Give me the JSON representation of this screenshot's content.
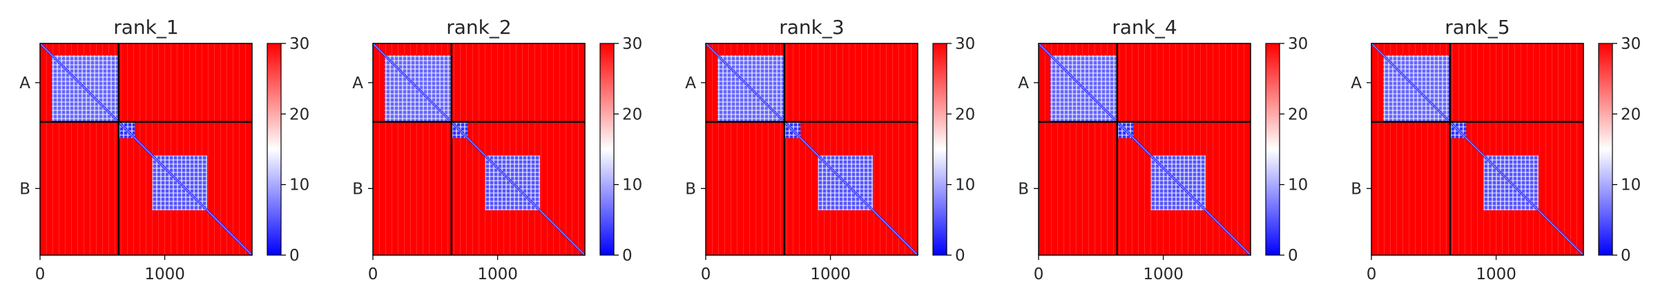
{
  "chart_data": {
    "type": "heatmap",
    "colormap": {
      "name": "bwr",
      "colors": [
        "#0000ff",
        "#ffffff",
        "#ff0000"
      ],
      "vmin": 0,
      "vmax": 30
    },
    "colorbar_ticks": [
      "0",
      "10",
      "20",
      "30"
    ],
    "x_ticks": [
      {
        "value": 0,
        "label": "0"
      },
      {
        "value": 1000,
        "label": "1000"
      }
    ],
    "xlim": [
      0,
      1700
    ],
    "chain_boundary": 630,
    "y_ticks": [
      {
        "value": 315,
        "label": "A"
      },
      {
        "value": 1165,
        "label": "B"
      }
    ],
    "panels": [
      {
        "title": "rank_1"
      },
      {
        "title": "rank_2"
      },
      {
        "title": "rank_3"
      },
      {
        "title": "rank_4"
      },
      {
        "title": "rank_5"
      }
    ],
    "structure": {
      "chains": [
        {
          "name": "A",
          "range": [
            0,
            630
          ]
        },
        {
          "name": "B",
          "range": [
            630,
            1700
          ]
        }
      ],
      "low_error_blocks": [
        {
          "range": [
            95,
            630
          ],
          "level": 6
        },
        {
          "range": [
            630,
            760
          ],
          "level": 3
        },
        {
          "range": [
            900,
            1340
          ],
          "level": 5
        }
      ],
      "background_level": 30
    }
  }
}
